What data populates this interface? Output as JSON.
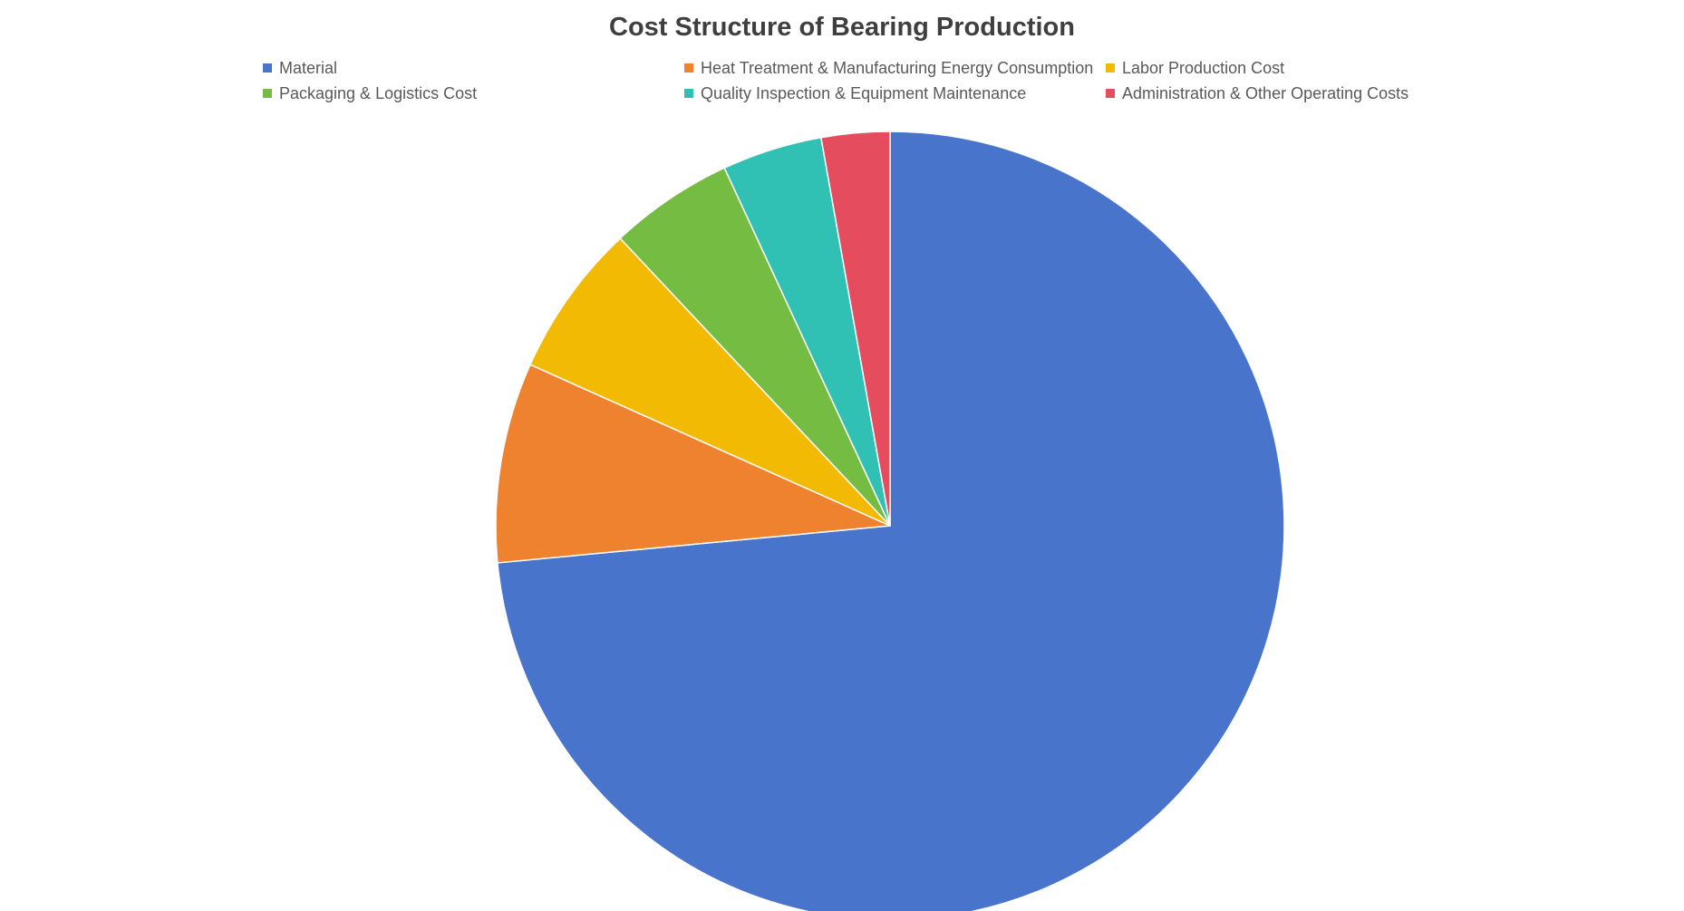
{
  "chart_data": {
    "type": "pie",
    "title": "Cost Structure of Bearing Production",
    "legend_position": "top",
    "start_angle_deg": 0,
    "direction": "clockwise",
    "slices": [
      {
        "label": "Material",
        "value": 73.5,
        "color": "#4874CB"
      },
      {
        "label": "Heat Treatment & Manufacturing Energy Consumption",
        "value": 8.2,
        "color": "#EE822F"
      },
      {
        "label": "Labor Production Cost",
        "value": 6.3,
        "color": "#F2BA02"
      },
      {
        "label": "Packaging & Logistics Cost",
        "value": 5.1,
        "color": "#75BD42"
      },
      {
        "label": "Quality Inspection & Equipment Maintenance",
        "value": 4.1,
        "color": "#30C0B4"
      },
      {
        "label": "Administration & Other Operating Costs",
        "value": 2.8,
        "color": "#E54C5E"
      }
    ]
  }
}
